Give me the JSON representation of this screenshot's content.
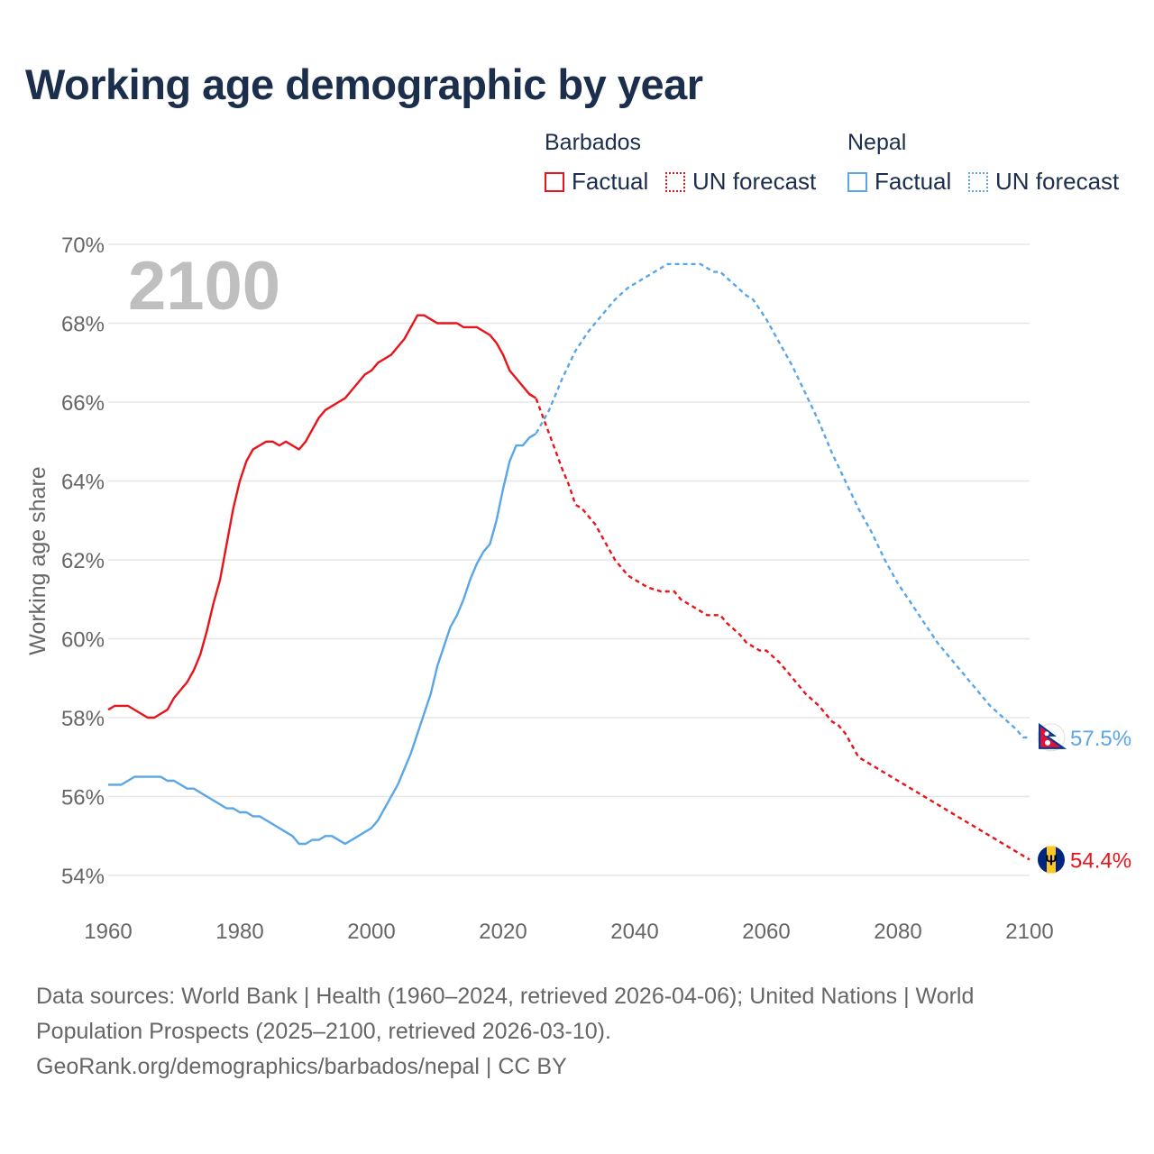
{
  "title": "Working age demographic by year",
  "legend": {
    "groups": [
      {
        "name": "Barbados",
        "factual": "Factual",
        "forecast": "UN forecast",
        "color": "#e8141b"
      },
      {
        "name": "Nepal",
        "factual": "Factual",
        "forecast": "UN forecast",
        "color": "#5aa6e6"
      }
    ]
  },
  "year_label": "2100",
  "footer": {
    "line1": "Data sources: World Bank | Health (1960–2024, retrieved 2026-04-06); United Nations | World",
    "line2": "Population Prospects (2025–2100, retrieved 2026-03-10).",
    "line3": "GeoRank.org/demographics/barbados/nepal | CC BY"
  },
  "chart_data": {
    "type": "line",
    "title": "Working age demographic by year",
    "ylabel": "Working age share",
    "xlabel": "",
    "xlim": [
      1960,
      2100
    ],
    "ylim": [
      54,
      70
    ],
    "x_ticks": [
      "1960",
      "1980",
      "2000",
      "2020",
      "2040",
      "2060",
      "2080",
      "2100"
    ],
    "y_ticks": [
      "54%",
      "56%",
      "58%",
      "60%",
      "62%",
      "64%",
      "66%",
      "68%",
      "70%"
    ],
    "factual_range": [
      1960,
      2024
    ],
    "forecast_range": [
      2025,
      2100
    ],
    "series": [
      {
        "name": "Barbados",
        "color": "#e8141b",
        "end_label": "54.4%",
        "points": [
          [
            1960,
            58.2
          ],
          [
            1961,
            58.3
          ],
          [
            1963,
            58.3
          ],
          [
            1966,
            58.0
          ],
          [
            1967,
            58.0
          ],
          [
            1969,
            58.2
          ],
          [
            1970,
            58.5
          ],
          [
            1972,
            58.9
          ],
          [
            1973,
            59.2
          ],
          [
            1974,
            59.6
          ],
          [
            1975,
            60.2
          ],
          [
            1976,
            60.9
          ],
          [
            1977,
            61.5
          ],
          [
            1978,
            62.4
          ],
          [
            1979,
            63.3
          ],
          [
            1980,
            64.0
          ],
          [
            1981,
            64.5
          ],
          [
            1982,
            64.8
          ],
          [
            1984,
            65.0
          ],
          [
            1985,
            65.0
          ],
          [
            1986,
            64.9
          ],
          [
            1987,
            65.0
          ],
          [
            1989,
            64.8
          ],
          [
            1990,
            65.0
          ],
          [
            1992,
            65.6
          ],
          [
            1993,
            65.8
          ],
          [
            1995,
            66.0
          ],
          [
            1996,
            66.1
          ],
          [
            1998,
            66.5
          ],
          [
            1999,
            66.7
          ],
          [
            2000,
            66.8
          ],
          [
            2001,
            67.0
          ],
          [
            2003,
            67.2
          ],
          [
            2005,
            67.6
          ],
          [
            2007,
            68.2
          ],
          [
            2008,
            68.2
          ],
          [
            2010,
            68.0
          ],
          [
            2013,
            68.0
          ],
          [
            2014,
            67.9
          ],
          [
            2016,
            67.9
          ],
          [
            2018,
            67.7
          ],
          [
            2019,
            67.5
          ],
          [
            2020,
            67.2
          ],
          [
            2021,
            66.8
          ],
          [
            2023,
            66.4
          ],
          [
            2024,
            66.2
          ],
          [
            2025,
            66.1
          ],
          [
            2027,
            65.2
          ],
          [
            2029,
            64.3
          ],
          [
            2030,
            63.9
          ],
          [
            2031,
            63.4
          ],
          [
            2032,
            63.3
          ],
          [
            2034,
            62.9
          ],
          [
            2036,
            62.3
          ],
          [
            2037,
            62.0
          ],
          [
            2038,
            61.8
          ],
          [
            2039,
            61.6
          ],
          [
            2042,
            61.3
          ],
          [
            2044,
            61.2
          ],
          [
            2046,
            61.2
          ],
          [
            2047,
            61.0
          ],
          [
            2049,
            60.8
          ],
          [
            2051,
            60.6
          ],
          [
            2053,
            60.6
          ],
          [
            2054,
            60.4
          ],
          [
            2056,
            60.1
          ],
          [
            2057,
            59.9
          ],
          [
            2059,
            59.7
          ],
          [
            2060,
            59.7
          ],
          [
            2062,
            59.4
          ],
          [
            2063,
            59.2
          ],
          [
            2065,
            58.8
          ],
          [
            2066,
            58.6
          ],
          [
            2068,
            58.3
          ],
          [
            2070,
            57.9
          ],
          [
            2071,
            57.8
          ],
          [
            2072,
            57.6
          ],
          [
            2073,
            57.3
          ],
          [
            2074,
            57.0
          ],
          [
            2076,
            56.8
          ],
          [
            2080,
            56.4
          ],
          [
            2085,
            55.9
          ],
          [
            2090,
            55.4
          ],
          [
            2095,
            54.9
          ],
          [
            2100,
            54.4
          ]
        ]
      },
      {
        "name": "Nepal",
        "color": "#5aa6e6",
        "end_label": "57.5%",
        "points": [
          [
            1960,
            56.3
          ],
          [
            1962,
            56.3
          ],
          [
            1964,
            56.5
          ],
          [
            1968,
            56.5
          ],
          [
            1969,
            56.4
          ],
          [
            1970,
            56.4
          ],
          [
            1972,
            56.2
          ],
          [
            1973,
            56.2
          ],
          [
            1975,
            56.0
          ],
          [
            1978,
            55.7
          ],
          [
            1979,
            55.7
          ],
          [
            1980,
            55.6
          ],
          [
            1981,
            55.6
          ],
          [
            1982,
            55.5
          ],
          [
            1983,
            55.5
          ],
          [
            1985,
            55.3
          ],
          [
            1988,
            55.0
          ],
          [
            1989,
            54.8
          ],
          [
            1990,
            54.8
          ],
          [
            1991,
            54.9
          ],
          [
            1992,
            54.9
          ],
          [
            1993,
            55.0
          ],
          [
            1994,
            55.0
          ],
          [
            1996,
            54.8
          ],
          [
            1998,
            55.0
          ],
          [
            2000,
            55.2
          ],
          [
            2001,
            55.4
          ],
          [
            2002,
            55.7
          ],
          [
            2004,
            56.3
          ],
          [
            2006,
            57.1
          ],
          [
            2008,
            58.1
          ],
          [
            2009,
            58.6
          ],
          [
            2010,
            59.3
          ],
          [
            2011,
            59.8
          ],
          [
            2012,
            60.3
          ],
          [
            2013,
            60.6
          ],
          [
            2014,
            61.0
          ],
          [
            2015,
            61.5
          ],
          [
            2016,
            61.9
          ],
          [
            2017,
            62.2
          ],
          [
            2018,
            62.4
          ],
          [
            2019,
            63.0
          ],
          [
            2020,
            63.8
          ],
          [
            2021,
            64.5
          ],
          [
            2022,
            64.9
          ],
          [
            2023,
            64.9
          ],
          [
            2024,
            65.1
          ],
          [
            2025,
            65.2
          ],
          [
            2027,
            65.8
          ],
          [
            2029,
            66.6
          ],
          [
            2031,
            67.3
          ],
          [
            2033,
            67.8
          ],
          [
            2035,
            68.2
          ],
          [
            2037,
            68.6
          ],
          [
            2039,
            68.9
          ],
          [
            2041,
            69.1
          ],
          [
            2043,
            69.3
          ],
          [
            2045,
            69.5
          ],
          [
            2050,
            69.5
          ],
          [
            2052,
            69.3
          ],
          [
            2053,
            69.3
          ],
          [
            2055,
            69.0
          ],
          [
            2057,
            68.7
          ],
          [
            2058,
            68.6
          ],
          [
            2060,
            68.1
          ],
          [
            2062,
            67.5
          ],
          [
            2064,
            66.9
          ],
          [
            2066,
            66.2
          ],
          [
            2068,
            65.5
          ],
          [
            2070,
            64.7
          ],
          [
            2072,
            64.0
          ],
          [
            2074,
            63.3
          ],
          [
            2076,
            62.7
          ],
          [
            2078,
            62.0
          ],
          [
            2080,
            61.4
          ],
          [
            2082,
            60.9
          ],
          [
            2084,
            60.4
          ],
          [
            2086,
            59.9
          ],
          [
            2088,
            59.5
          ],
          [
            2090,
            59.1
          ],
          [
            2092,
            58.7
          ],
          [
            2094,
            58.3
          ],
          [
            2096,
            58.0
          ],
          [
            2098,
            57.7
          ],
          [
            2099,
            57.5
          ],
          [
            2100,
            57.5
          ]
        ]
      }
    ]
  }
}
